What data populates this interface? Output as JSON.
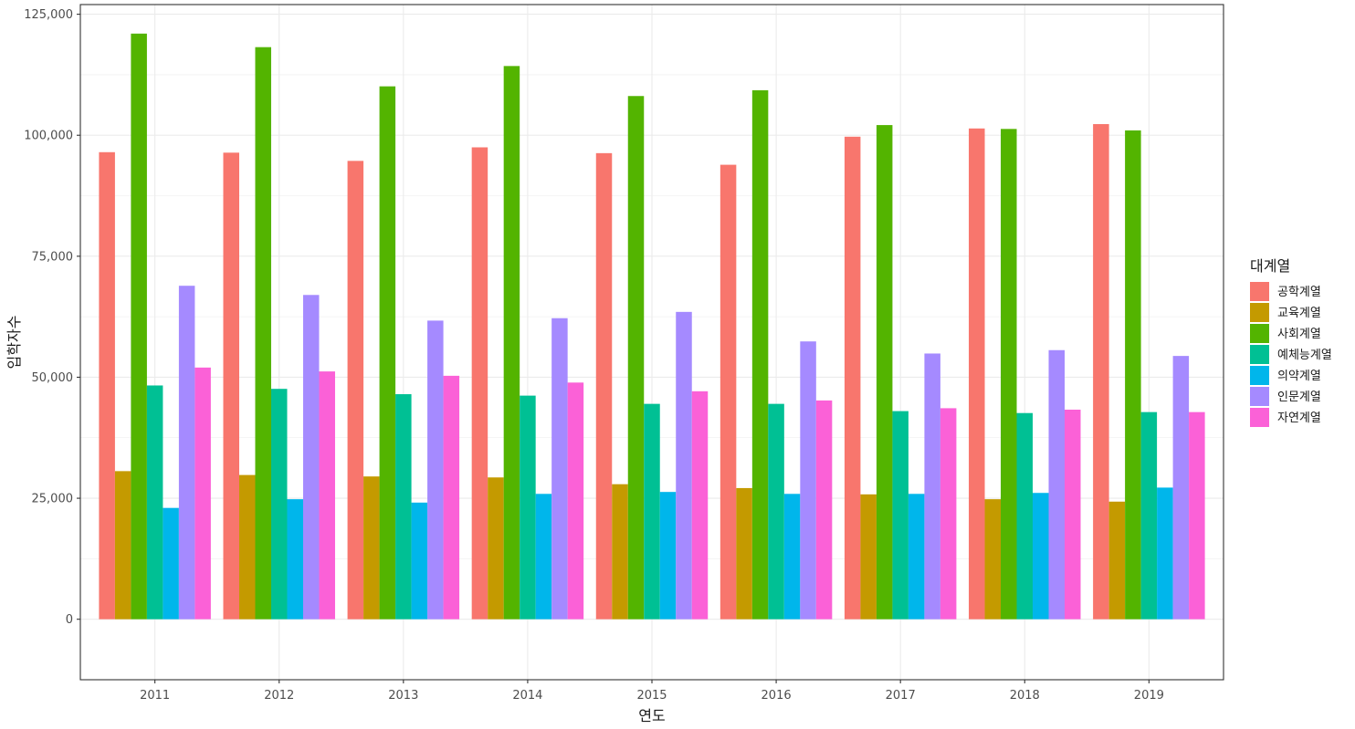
{
  "chart_data": {
    "type": "bar",
    "xlabel": "연도",
    "ylabel": "입학자수",
    "legend_title": "대계열",
    "legend_position": "right",
    "grid": true,
    "ylim": [
      -12500,
      127000
    ],
    "y_ticks": [
      0,
      25000,
      50000,
      75000,
      100000,
      125000
    ],
    "y_tick_labels": [
      "0",
      "25,000",
      "50,000",
      "75,000",
      "100,000",
      "125,000"
    ],
    "categories": [
      "2011",
      "2012",
      "2013",
      "2014",
      "2015",
      "2016",
      "2017",
      "2018",
      "2019"
    ],
    "series": [
      {
        "name": "공학계열",
        "color": "#F8766D",
        "values": [
          96500,
          96400,
          94700,
          97500,
          96300,
          93900,
          99700,
          101400,
          102300
        ]
      },
      {
        "name": "교육계열",
        "color": "#C49A00",
        "values": [
          30600,
          29800,
          29500,
          29300,
          27900,
          27100,
          25800,
          24800,
          24300
        ]
      },
      {
        "name": "사회계열",
        "color": "#53B400",
        "values": [
          121000,
          118200,
          110100,
          114300,
          108100,
          109300,
          102100,
          101300,
          101000
        ]
      },
      {
        "name": "예체능계열",
        "color": "#00C094",
        "values": [
          48300,
          47600,
          46500,
          46200,
          44500,
          44500,
          43000,
          42600,
          42800
        ]
      },
      {
        "name": "의약계열",
        "color": "#00B6EB",
        "values": [
          23000,
          24800,
          24100,
          25900,
          26300,
          25900,
          25900,
          26100,
          27200
        ]
      },
      {
        "name": "인문계열",
        "color": "#A58AFF",
        "values": [
          68900,
          67000,
          61700,
          62200,
          63500,
          57400,
          54900,
          55600,
          54400
        ]
      },
      {
        "name": "자연계열",
        "color": "#FB61D7",
        "values": [
          52000,
          51200,
          50300,
          48900,
          47100,
          45200,
          43600,
          43300,
          42800
        ]
      }
    ]
  }
}
